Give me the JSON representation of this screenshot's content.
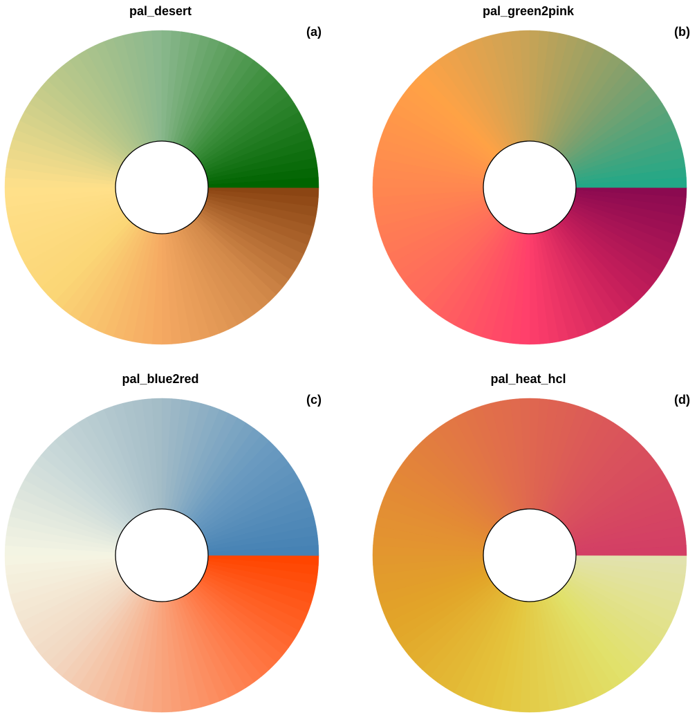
{
  "chart_data": [
    {
      "type": "pie",
      "title": "pal_desert",
      "tag": "(a)",
      "n_slices": 100,
      "palette_stops": [
        "#8B4513",
        "#D2894A",
        "#F5A962",
        "#FBD676",
        "#FFE08A",
        "#BCC98A",
        "#8BB88E",
        "#3E8F3E",
        "#006400"
      ]
    },
    {
      "type": "pie",
      "title": "pal_green2pink",
      "tag": "(b)",
      "n_slices": 100,
      "palette_stops": [
        "#8B0A50",
        "#C41E5A",
        "#FF3F6B",
        "#FF6A5C",
        "#FF8750",
        "#FFA245",
        "#C8A356",
        "#7DA06E",
        "#22A887"
      ]
    },
    {
      "type": "pie",
      "title": "pal_blue2red",
      "tag": "(c)",
      "n_slices": 100,
      "palette_stops": [
        "#FF4500",
        "#FF7440",
        "#F9A57E",
        "#F2D8C2",
        "#F5F5E3",
        "#C7D7D8",
        "#A3BCC7",
        "#6B9BC0",
        "#4682B4"
      ]
    },
    {
      "type": "pie",
      "title": "pal_heat_hcl",
      "tag": "(d)",
      "n_slices": 100,
      "palette_stops": [
        "#E2E2AE",
        "#E1E16A",
        "#E4C43C",
        "#E2A428",
        "#E38A35",
        "#E16E4B",
        "#DA545B",
        "#D33E65"
      ]
    }
  ]
}
